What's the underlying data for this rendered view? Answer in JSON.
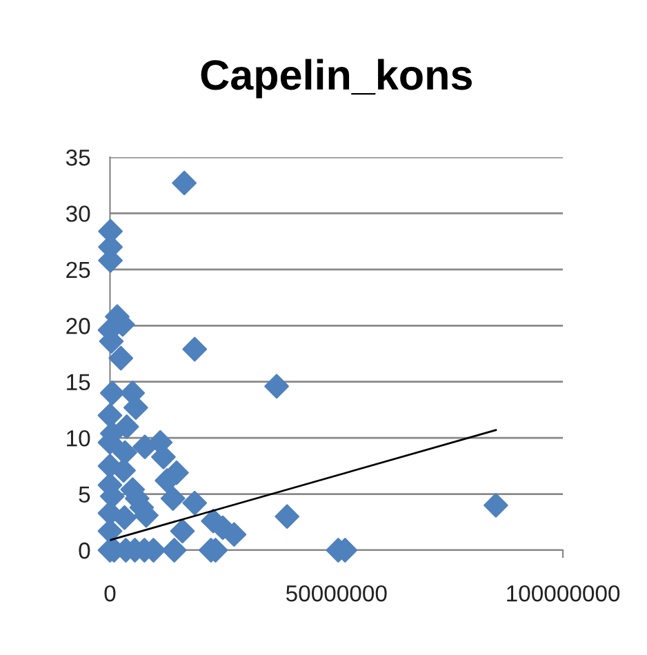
{
  "chart_data": {
    "type": "scatter",
    "title": "Capelin_kons",
    "marker": "diamond",
    "grid": "y",
    "legend": false,
    "xlim": [
      0,
      100000000
    ],
    "xticks": [
      0,
      50000000,
      100000000
    ],
    "ylim": [
      0,
      35
    ],
    "yticks": [
      0,
      5,
      10,
      15,
      20,
      25,
      30,
      35
    ],
    "series": [
      {
        "color": "#4f81bd",
        "x": [
          16400000,
          100000,
          100000,
          100000,
          1600000,
          2800000,
          0,
          300000,
          2400000,
          18700000,
          36800000,
          500000,
          5000000,
          5700000,
          0,
          3700000,
          500000,
          0,
          7700000,
          11100000,
          11800000,
          3300000,
          0,
          3000000,
          14700000,
          12600000,
          0,
          5000000,
          500000,
          6000000,
          13900000,
          7000000,
          18700000,
          8000000,
          0,
          3200000,
          39100000,
          22800000,
          24900000,
          27400000,
          16000000,
          0,
          0,
          900000,
          3500000,
          5500000,
          7600000,
          9600000,
          14200000,
          22300000,
          23300000,
          50400000,
          51900000,
          85200000
        ],
        "values": [
          32.7,
          28.4,
          27.0,
          25.8,
          20.8,
          20.1,
          19.6,
          18.6,
          17.1,
          17.9,
          14.6,
          14.0,
          14.0,
          12.7,
          12.0,
          11.0,
          10.4,
          9.6,
          9.2,
          9.6,
          8.3,
          8.7,
          7.5,
          7.1,
          6.9,
          6.2,
          5.8,
          5.4,
          4.8,
          4.6,
          4.6,
          3.8,
          4.2,
          3.1,
          3.3,
          2.9,
          3.0,
          2.6,
          2.0,
          1.4,
          1.7,
          1.7,
          0,
          0,
          0,
          0,
          0,
          0,
          0,
          0,
          0,
          0,
          0,
          4.0
        ]
      },
      {
        "type": "line",
        "color": "#000000",
        "marker": "none",
        "x": [
          0,
          85200000
        ],
        "values": [
          0.9,
          10.7
        ]
      }
    ]
  }
}
